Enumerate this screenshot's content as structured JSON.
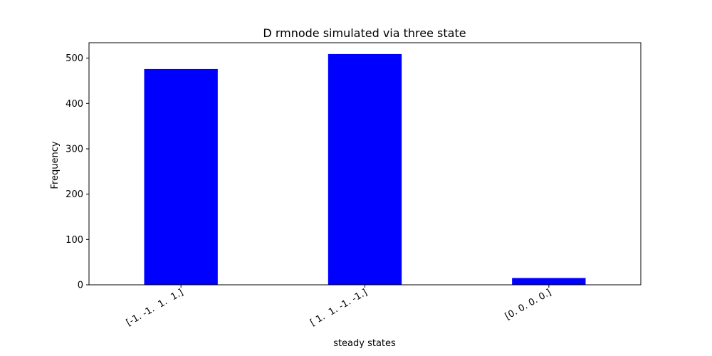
{
  "chart_data": {
    "type": "bar",
    "title": "D rmnode simulated via three state",
    "xlabel": "steady states",
    "ylabel": "Frequency",
    "categories": [
      "[-1. -1.  1.  1.]",
      "[ 1.  1. -1. -1.]",
      "[0. 0. 0. 0.]"
    ],
    "values": [
      476,
      509,
      15
    ],
    "ylim": [
      0,
      534
    ],
    "yticks": [
      0,
      100,
      200,
      300,
      400,
      500
    ],
    "bar_color": "#0000ff",
    "grid": false,
    "legend": "none"
  }
}
